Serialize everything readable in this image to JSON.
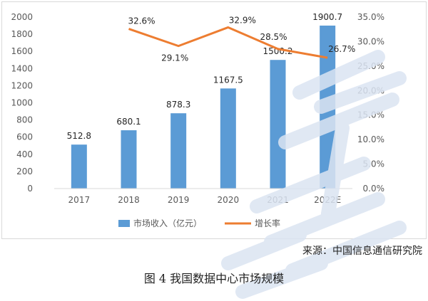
{
  "chart_data": {
    "type": "bar",
    "categories": [
      "2017",
      "2018",
      "2019",
      "2020",
      "2021",
      "2022E"
    ],
    "series": [
      {
        "name": "市场收入（亿元）",
        "type": "bar",
        "axis": "left",
        "values": [
          512.8,
          680.1,
          878.3,
          1167.5,
          1500.2,
          1900.7
        ],
        "labels": [
          "512.8",
          "680.1",
          "878.3",
          "1167.5",
          "1500.2",
          "1900.7"
        ]
      },
      {
        "name": "增长率",
        "type": "line",
        "axis": "right",
        "values": [
          null,
          32.6,
          29.1,
          32.9,
          28.5,
          26.7
        ],
        "labels": [
          "",
          "32.6%",
          "29.1%",
          "32.9%",
          "28.5%",
          "26.7%"
        ]
      }
    ],
    "y_left": {
      "min": 0,
      "max": 2000,
      "step": 200,
      "ticks": [
        "0",
        "200",
        "400",
        "600",
        "800",
        "1000",
        "1200",
        "1400",
        "1600",
        "1800",
        "2000"
      ]
    },
    "y_right": {
      "min": 0,
      "max": 35,
      "step": 5,
      "ticks": [
        "0.0%",
        "5.0%",
        "10.0%",
        "15.0%",
        "20.0%",
        "25.0%",
        "30.0%",
        "35.0%"
      ]
    },
    "legend_position": "bottom",
    "grid": false,
    "colors": {
      "bar": "#5b9bd5",
      "line": "#ed7d31"
    }
  },
  "source_note": "来源：中国信息通信研究院",
  "caption": "图 4 我国数据中心市场规模"
}
